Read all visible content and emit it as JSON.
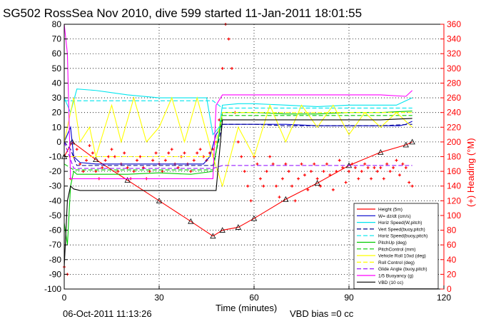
{
  "chart_data": {
    "type": "line",
    "title": "SG502 RossSea Nov 2010, dive 599 started 11-Jan-2011 18:01:55",
    "xlabel": "Time (minutes)",
    "ylabel_right": "(+) Heading (°M)",
    "xlim": [
      0,
      120
    ],
    "ylim": [
      -100,
      80
    ],
    "ylim_right": [
      0,
      360
    ],
    "x_ticks": [
      0,
      30,
      60,
      90,
      120
    ],
    "y_ticks": [
      -100,
      -90,
      -80,
      -70,
      -60,
      -50,
      -40,
      -30,
      -20,
      -10,
      0,
      10,
      20,
      30,
      40,
      50,
      60,
      70,
      80
    ],
    "y_ticks_right": [
      0,
      20,
      40,
      60,
      80,
      100,
      120,
      140,
      160,
      180,
      200,
      220,
      240,
      260,
      280,
      300,
      320,
      340,
      360
    ],
    "grid": true,
    "legend_position": "bottom-right",
    "footer_date": "06-Oct-2011 11:13:26",
    "footer_note": "VBD bias =0 cc",
    "series": [
      {
        "name": "Height (5m)",
        "color": "#ff0000",
        "style": "solid-triangles",
        "x": [
          0,
          2.5,
          10,
          20,
          30,
          40,
          47,
          50,
          55,
          60,
          70,
          80,
          90,
          100,
          108,
          110
        ],
        "y": [
          -10,
          0,
          -12,
          -26,
          -40,
          -54,
          -64,
          -60,
          -58,
          -52,
          -39,
          -28,
          -16,
          -7,
          -2,
          0
        ]
      },
      {
        "name": "W= dz/dt (cm/s)",
        "color": "#0000cd",
        "style": "solid",
        "x": [
          0,
          2,
          3,
          5,
          10,
          20,
          30,
          40,
          44,
          46,
          48,
          50,
          60,
          70,
          80,
          90,
          100,
          106,
          108,
          110
        ],
        "y": [
          0,
          10,
          -10,
          -14,
          -15,
          -15,
          -15,
          -15,
          -15,
          -10,
          5,
          12,
          12,
          12,
          11,
          11,
          11,
          11,
          12,
          14
        ]
      },
      {
        "name": "Horiz Speed(W,pitch)",
        "color": "#00e5ee",
        "style": "solid",
        "x": [
          0,
          2,
          4,
          10,
          20,
          30,
          40,
          45,
          47,
          49,
          50,
          55,
          60,
          70,
          80,
          90,
          100,
          105,
          108,
          110
        ],
        "y": [
          30,
          20,
          36,
          35,
          32,
          30,
          30,
          30,
          5,
          10,
          25,
          26,
          26,
          25,
          24,
          25,
          25,
          25,
          28,
          30
        ]
      },
      {
        "name": "Vert Speed(buoy,pitch)",
        "color": "#00008b",
        "style": "dashed",
        "x": [
          0,
          2,
          4,
          10,
          20,
          30,
          40,
          47,
          50,
          60,
          70,
          80,
          90,
          100,
          110
        ],
        "y": [
          0,
          -5,
          -16,
          -16,
          -16,
          -16,
          -16,
          -16,
          12,
          12,
          11,
          11,
          11,
          11,
          12
        ]
      },
      {
        "name": "Horiz Speed(buoy,pitch)",
        "color": "#00e5ee",
        "style": "dashed",
        "x": [
          0,
          4,
          10,
          30,
          47,
          50,
          60,
          80,
          100,
          110
        ],
        "y": [
          28,
          28,
          28,
          28,
          28,
          23,
          23,
          23,
          23,
          23
        ]
      },
      {
        "name": "PitchUp (deg)",
        "color": "#00cc00",
        "style": "solid",
        "x": [
          0,
          1,
          2,
          3,
          4,
          10,
          20,
          30,
          40,
          47,
          50,
          60,
          70,
          80,
          90,
          100,
          110
        ],
        "y": [
          -55,
          -70,
          -30,
          -20,
          -22,
          -22,
          -22,
          -21,
          -22,
          -20,
          20,
          20,
          19,
          19,
          20,
          20,
          21
        ]
      },
      {
        "name": "PitchControl (mm)",
        "color": "#00cc00",
        "style": "dashed",
        "x": [
          0,
          3,
          10,
          30,
          47,
          50,
          60,
          80,
          100,
          110
        ],
        "y": [
          -15,
          -19,
          -19,
          -19,
          -19,
          18,
          18,
          18,
          18,
          18
        ]
      },
      {
        "name": "Vehicle Roll 10xd (deg)",
        "color": "#ffff00",
        "style": "solid",
        "x": [
          0,
          3,
          5,
          8,
          10,
          15,
          18,
          22,
          26,
          30,
          34,
          38,
          42,
          47,
          50,
          55,
          60,
          65,
          70,
          75,
          80,
          85,
          90,
          95,
          100,
          105,
          110
        ],
        "y": [
          0,
          30,
          0,
          10,
          -10,
          25,
          0,
          30,
          0,
          10,
          30,
          0,
          30,
          -10,
          -30,
          10,
          -10,
          25,
          0,
          25,
          10,
          25,
          5,
          20,
          10,
          20,
          10
        ]
      },
      {
        "name": "Roll Control (deg)",
        "color": "#ffff00",
        "style": "dashed",
        "x": [
          0,
          5,
          20,
          47,
          50,
          80,
          110
        ],
        "y": [
          -10,
          -10,
          -10,
          -10,
          20,
          20,
          20
        ]
      },
      {
        "name": "Glide Angle (buoy,pitch)",
        "color": "#8b00ff",
        "style": "dashed",
        "x": [
          0,
          3,
          10,
          30,
          47,
          50,
          60,
          80,
          100,
          110
        ],
        "y": [
          0,
          -18,
          -18,
          -18,
          -18,
          -16,
          -16,
          -16,
          -16,
          -16
        ]
      },
      {
        "name": "1/5 Buoyancy (g)",
        "color": "#ff00ff",
        "style": "solid",
        "x": [
          0,
          1,
          2,
          3,
          30,
          47,
          48,
          50,
          60,
          80,
          100,
          108,
          110
        ],
        "y": [
          80,
          60,
          -25,
          -25,
          -25,
          -25,
          25,
          32,
          32,
          32,
          32,
          31,
          35
        ]
      },
      {
        "name": "VBD (10 cc)",
        "color": "#000000",
        "style": "solid",
        "x": [
          0,
          1,
          2,
          3,
          5,
          30,
          47,
          48,
          50,
          60,
          80,
          100,
          110
        ],
        "y": [
          -85,
          -40,
          -30,
          -32,
          -33,
          -33,
          -33,
          -33,
          15,
          15,
          15,
          15,
          16
        ]
      }
    ],
    "heading_series": {
      "name": "Heading",
      "color": "#ff0000",
      "axis": "right",
      "x": [
        0,
        1,
        2,
        3,
        4,
        5,
        6,
        7,
        8,
        9,
        10,
        11,
        12,
        13,
        14,
        15,
        16,
        17,
        18,
        19,
        20,
        21,
        22,
        23,
        24,
        25,
        26,
        27,
        28,
        29,
        30,
        31,
        32,
        33,
        34,
        35,
        36,
        37,
        38,
        39,
        40,
        41,
        42,
        43,
        44,
        45,
        46,
        47,
        48,
        49,
        50,
        51,
        52,
        53,
        54,
        55,
        56,
        57,
        58,
        59,
        60,
        61,
        62,
        63,
        64,
        65,
        66,
        67,
        68,
        69,
        70,
        71,
        72,
        73,
        74,
        75,
        76,
        77,
        78,
        79,
        80,
        81,
        82,
        83,
        84,
        85,
        86,
        87,
        88,
        89,
        90,
        91,
        92,
        93,
        94,
        95,
        96,
        97,
        98,
        99,
        100,
        101,
        102,
        103,
        104,
        105,
        106,
        107,
        108,
        109,
        110
      ],
      "y": [
        30,
        20,
        150,
        180,
        190,
        170,
        160,
        175,
        195,
        185,
        160,
        150,
        165,
        175,
        180,
        190,
        180,
        160,
        170,
        185,
        165,
        150,
        160,
        175,
        180,
        165,
        150,
        160,
        175,
        185,
        170,
        160,
        175,
        185,
        190,
        170,
        165,
        180,
        185,
        170,
        160,
        175,
        185,
        190,
        180,
        175,
        185,
        190,
        200,
        230,
        300,
        360,
        340,
        300,
        240,
        200,
        180,
        160,
        140,
        120,
        180,
        170,
        150,
        140,
        160,
        180,
        170,
        140,
        125,
        150,
        170,
        160,
        140,
        120,
        150,
        170,
        155,
        135,
        160,
        170,
        150,
        140,
        160,
        170,
        155,
        135,
        160,
        175,
        165,
        145,
        160,
        170,
        165,
        150,
        160,
        170,
        165,
        150,
        165,
        160,
        165,
        150,
        170,
        160,
        165,
        175,
        155,
        170,
        165,
        145,
        140
      ]
    }
  }
}
